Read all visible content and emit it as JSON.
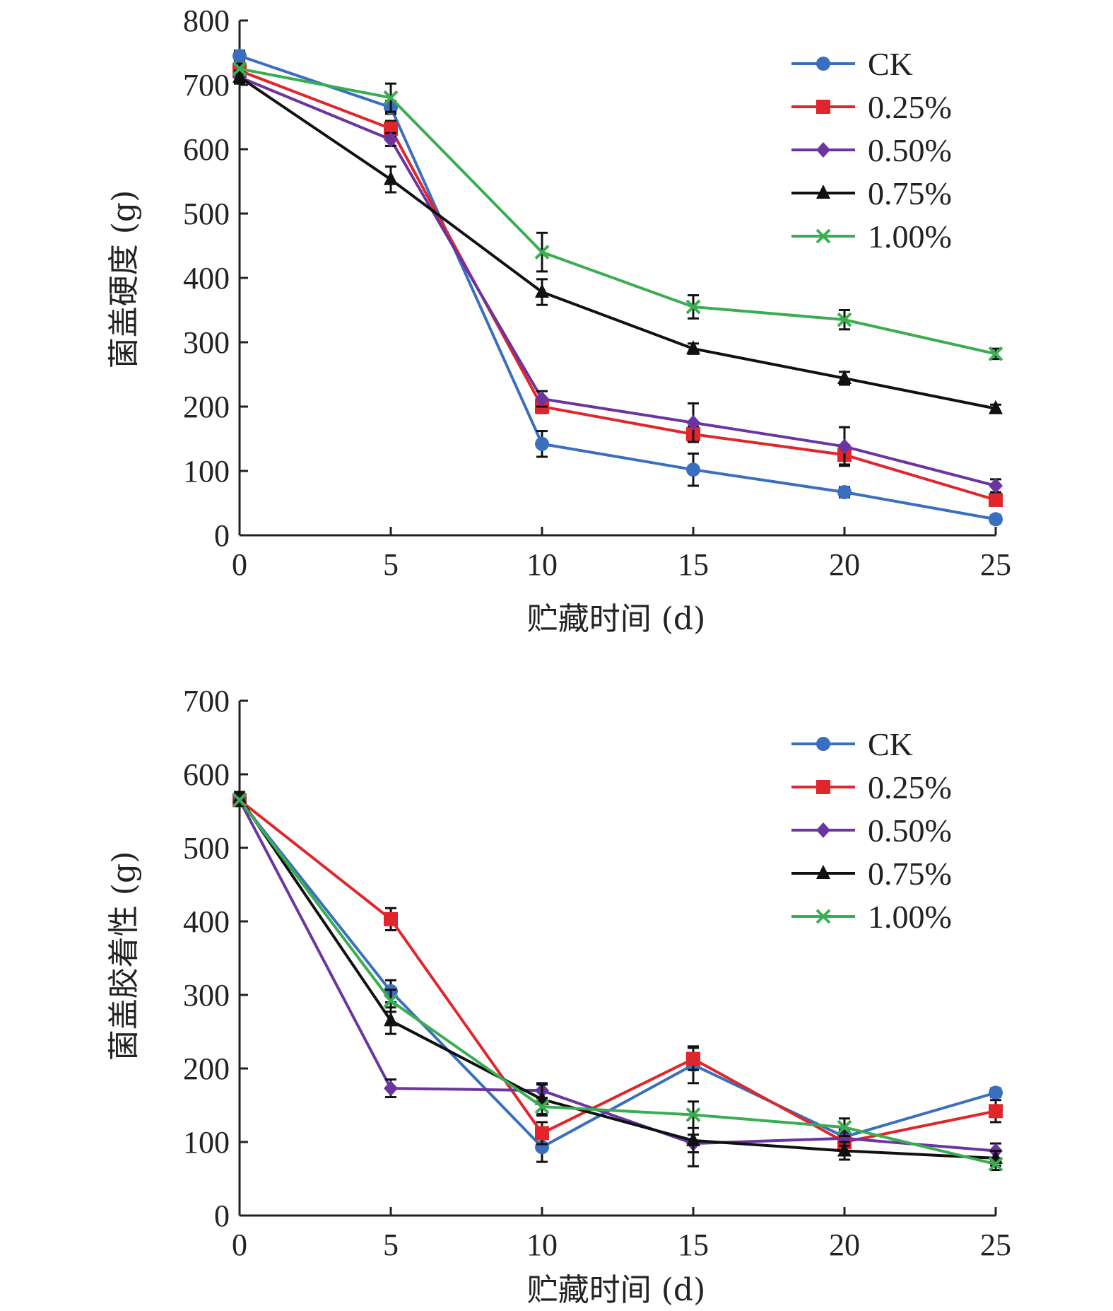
{
  "chart_data": [
    {
      "type": "line",
      "title": "",
      "xlabel": "贮藏时间 (d)",
      "ylabel": "菌盖硬度 (g)",
      "x": [
        0,
        5,
        10,
        15,
        20,
        25
      ],
      "xticks": [
        "0",
        "5",
        "10",
        "15",
        "20",
        "25"
      ],
      "yticks": [
        "0",
        "100",
        "200",
        "300",
        "400",
        "500",
        "600",
        "700",
        "800"
      ],
      "xlim": [
        0,
        25
      ],
      "ylim": [
        0,
        800
      ],
      "grid": false,
      "legend_position": "top-right",
      "error_bars": true,
      "series": [
        {
          "name": "CK",
          "color": "#3a6fbf",
          "marker": "circle",
          "values": [
            745,
            665,
            142,
            102,
            67,
            25
          ],
          "errors": [
            8,
            10,
            20,
            25,
            8,
            6
          ]
        },
        {
          "name": "0.25%",
          "color": "#e0262b",
          "marker": "square",
          "values": [
            722,
            632,
            200,
            157,
            125,
            55
          ],
          "errors": [
            8,
            12,
            10,
            12,
            15,
            8
          ]
        },
        {
          "name": "0.50%",
          "color": "#6a35a0",
          "marker": "diamond",
          "values": [
            712,
            615,
            212,
            175,
            138,
            77
          ],
          "errors": [
            8,
            10,
            12,
            30,
            30,
            10
          ]
        },
        {
          "name": "0.75%",
          "color": "#111111",
          "marker": "triangle",
          "values": [
            712,
            553,
            378,
            290,
            244,
            197
          ],
          "errors": [
            10,
            20,
            20,
            8,
            10,
            6
          ]
        },
        {
          "name": "1.00%",
          "color": "#3aad52",
          "marker": "x",
          "values": [
            725,
            680,
            440,
            355,
            335,
            282
          ],
          "errors": [
            8,
            22,
            30,
            18,
            15,
            8
          ]
        }
      ]
    },
    {
      "type": "line",
      "title": "",
      "xlabel": "贮藏时间 (d)",
      "ylabel": "菌盖胶着性 (g)",
      "x": [
        0,
        5,
        10,
        15,
        20,
        25
      ],
      "xticks": [
        "0",
        "5",
        "10",
        "15",
        "20",
        "25"
      ],
      "yticks": [
        "0",
        "100",
        "200",
        "300",
        "400",
        "500",
        "600",
        "700"
      ],
      "xlim": [
        0,
        25
      ],
      "ylim": [
        0,
        700
      ],
      "grid": false,
      "legend_position": "top-right",
      "error_bars": true,
      "series": [
        {
          "name": "CK",
          "color": "#3a6fbf",
          "marker": "circle",
          "values": [
            565,
            305,
            93,
            205,
            107,
            167
          ],
          "errors": [
            8,
            15,
            20,
            25,
            10,
            6
          ]
        },
        {
          "name": "0.25%",
          "color": "#e0262b",
          "marker": "square",
          "values": [
            565,
            403,
            112,
            213,
            100,
            142
          ],
          "errors": [
            8,
            15,
            15,
            15,
            12,
            15
          ]
        },
        {
          "name": "0.50%",
          "color": "#6a35a0",
          "marker": "diamond",
          "values": [
            565,
            173,
            170,
            98,
            105,
            88
          ],
          "errors": [
            8,
            12,
            10,
            12,
            10,
            10
          ]
        },
        {
          "name": "0.75%",
          "color": "#111111",
          "marker": "triangle",
          "values": [
            568,
            265,
            158,
            102,
            88,
            78
          ],
          "errors": [
            8,
            18,
            20,
            35,
            12,
            10
          ]
        },
        {
          "name": "1.00%",
          "color": "#3aad52",
          "marker": "x",
          "values": [
            565,
            292,
            148,
            137,
            120,
            70
          ],
          "errors": [
            8,
            15,
            12,
            18,
            12,
            8
          ]
        }
      ]
    }
  ]
}
